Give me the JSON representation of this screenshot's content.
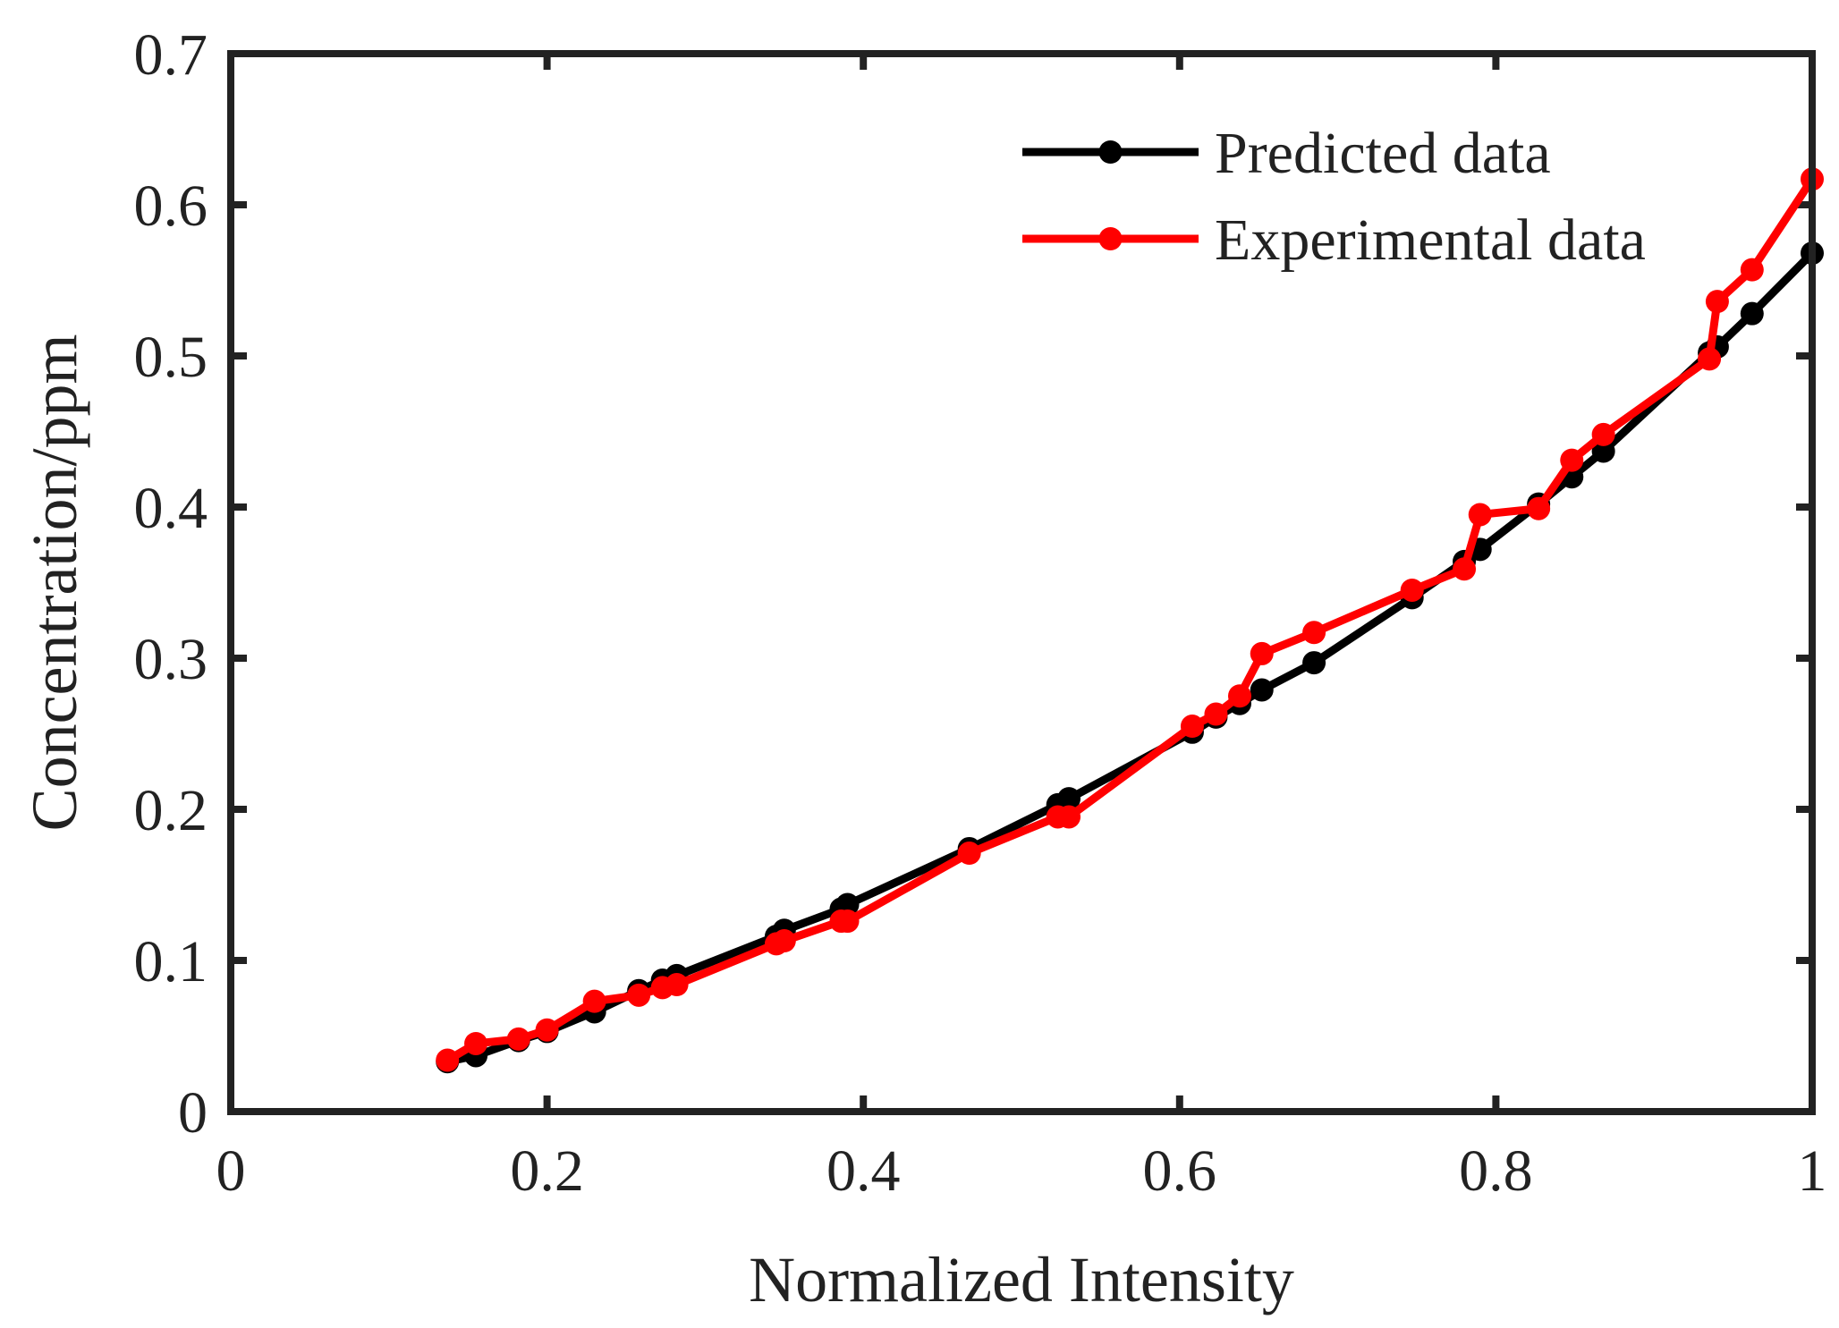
{
  "chart_data": {
    "type": "line",
    "title": "",
    "xlabel": "Normalized Intensity",
    "ylabel": "Concentration/ppm",
    "xlim": [
      0,
      1
    ],
    "ylim": [
      0,
      0.7
    ],
    "xticks": [
      "0",
      "0.2",
      "0.4",
      "0.6",
      "0.8",
      "1"
    ],
    "yticks": [
      "0",
      "0.1",
      "0.2",
      "0.3",
      "0.4",
      "0.5",
      "0.6",
      "0.7"
    ],
    "grid": false,
    "legend_position": "top-right",
    "series": [
      {
        "name": "Predicted data",
        "color": "#000000",
        "x": [
          0.137,
          0.155,
          0.182,
          0.2,
          0.23,
          0.258,
          0.273,
          0.282,
          0.345,
          0.35,
          0.386,
          0.39,
          0.467,
          0.523,
          0.53,
          0.608,
          0.623,
          0.638,
          0.652,
          0.685,
          0.747,
          0.78,
          0.79,
          0.827,
          0.848,
          0.868,
          0.935,
          0.94,
          0.962,
          1.0
        ],
        "y": [
          0.033,
          0.037,
          0.047,
          0.053,
          0.066,
          0.08,
          0.087,
          0.09,
          0.116,
          0.12,
          0.134,
          0.137,
          0.174,
          0.203,
          0.207,
          0.251,
          0.261,
          0.27,
          0.279,
          0.297,
          0.34,
          0.364,
          0.372,
          0.402,
          0.42,
          0.437,
          0.502,
          0.506,
          0.528,
          0.568
        ]
      },
      {
        "name": "Experimental data",
        "color": "#ff0000",
        "x": [
          0.137,
          0.155,
          0.182,
          0.2,
          0.23,
          0.258,
          0.273,
          0.282,
          0.345,
          0.35,
          0.386,
          0.39,
          0.467,
          0.523,
          0.53,
          0.608,
          0.623,
          0.638,
          0.652,
          0.685,
          0.747,
          0.78,
          0.79,
          0.827,
          0.848,
          0.868,
          0.935,
          0.94,
          0.962,
          1.0
        ],
        "y": [
          0.034,
          0.045,
          0.048,
          0.054,
          0.073,
          0.077,
          0.082,
          0.084,
          0.111,
          0.113,
          0.126,
          0.126,
          0.171,
          0.195,
          0.195,
          0.255,
          0.263,
          0.275,
          0.303,
          0.317,
          0.345,
          0.359,
          0.395,
          0.399,
          0.431,
          0.448,
          0.498,
          0.536,
          0.557,
          0.617
        ]
      }
    ]
  }
}
